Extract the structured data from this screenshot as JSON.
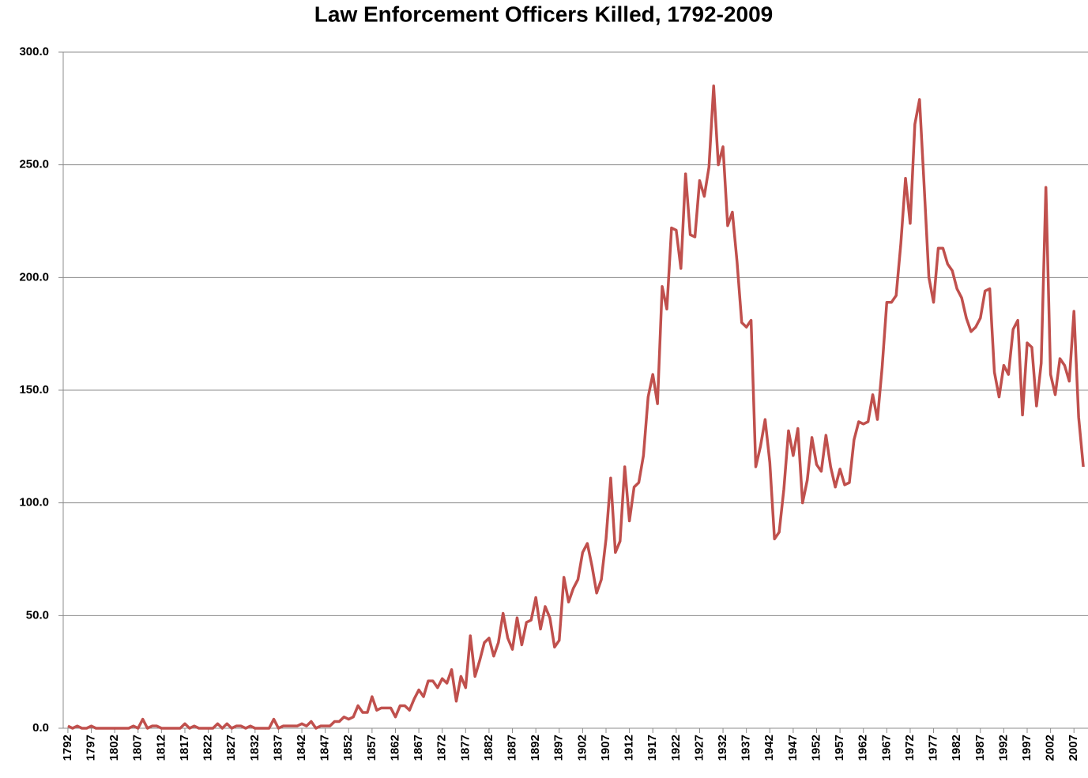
{
  "chart_data": {
    "type": "line",
    "title": "Law Enforcement Officers Killed, 1792-2009",
    "x": [
      1792,
      1793,
      1794,
      1795,
      1796,
      1797,
      1798,
      1799,
      1800,
      1801,
      1802,
      1803,
      1804,
      1805,
      1806,
      1807,
      1808,
      1809,
      1810,
      1811,
      1812,
      1813,
      1814,
      1815,
      1816,
      1817,
      1818,
      1819,
      1820,
      1821,
      1822,
      1823,
      1824,
      1825,
      1826,
      1827,
      1828,
      1829,
      1830,
      1831,
      1832,
      1833,
      1834,
      1835,
      1836,
      1837,
      1838,
      1839,
      1840,
      1841,
      1842,
      1843,
      1844,
      1845,
      1846,
      1847,
      1848,
      1849,
      1850,
      1851,
      1852,
      1853,
      1854,
      1855,
      1856,
      1857,
      1858,
      1859,
      1860,
      1861,
      1862,
      1863,
      1864,
      1865,
      1866,
      1867,
      1868,
      1869,
      1870,
      1871,
      1872,
      1873,
      1874,
      1875,
      1876,
      1877,
      1878,
      1879,
      1880,
      1881,
      1882,
      1883,
      1884,
      1885,
      1886,
      1887,
      1888,
      1889,
      1890,
      1891,
      1892,
      1893,
      1894,
      1895,
      1896,
      1897,
      1898,
      1899,
      1900,
      1901,
      1902,
      1903,
      1904,
      1905,
      1906,
      1907,
      1908,
      1909,
      1910,
      1911,
      1912,
      1913,
      1914,
      1915,
      1916,
      1917,
      1918,
      1919,
      1920,
      1921,
      1922,
      1923,
      1924,
      1925,
      1926,
      1927,
      1928,
      1929,
      1930,
      1931,
      1932,
      1933,
      1934,
      1935,
      1936,
      1937,
      1938,
      1939,
      1940,
      1941,
      1942,
      1943,
      1944,
      1945,
      1946,
      1947,
      1948,
      1949,
      1950,
      1951,
      1952,
      1953,
      1954,
      1955,
      1956,
      1957,
      1958,
      1959,
      1960,
      1961,
      1962,
      1963,
      1964,
      1965,
      1966,
      1967,
      1968,
      1969,
      1970,
      1971,
      1972,
      1973,
      1974,
      1975,
      1976,
      1977,
      1978,
      1979,
      1980,
      1981,
      1982,
      1983,
      1984,
      1985,
      1986,
      1987,
      1988,
      1989,
      1990,
      1991,
      1992,
      1993,
      1994,
      1995,
      1996,
      1997,
      1998,
      1999,
      2000,
      2001,
      2002,
      2003,
      2004,
      2005,
      2006,
      2007,
      2008,
      2009
    ],
    "series": [
      {
        "color": "#c0504d",
        "values": [
          1,
          0,
          1,
          0,
          0,
          1,
          0,
          0,
          0,
          0,
          0,
          0,
          0,
          0,
          1,
          0,
          4,
          0,
          1,
          1,
          0,
          0,
          0,
          0,
          0,
          2,
          0,
          1,
          0,
          0,
          0,
          0,
          2,
          0,
          2,
          0,
          1,
          1,
          0,
          1,
          0,
          0,
          0,
          0,
          4,
          0,
          1,
          1,
          1,
          1,
          2,
          1,
          3,
          0,
          1,
          1,
          1,
          3,
          3,
          5,
          4,
          5,
          10,
          7,
          7,
          14,
          8,
          9,
          9,
          9,
          5,
          10,
          10,
          8,
          13,
          17,
          14,
          21,
          21,
          18,
          22,
          20,
          26,
          12,
          23,
          18,
          41,
          23,
          30,
          38,
          40,
          32,
          38,
          51,
          40,
          35,
          49,
          37,
          47,
          48,
          58,
          44,
          54,
          49,
          36,
          39,
          67,
          56,
          62,
          66,
          78,
          82,
          72,
          60,
          66,
          84,
          111,
          78,
          83,
          116,
          92,
          107,
          109,
          121,
          147,
          157,
          144,
          196,
          186,
          222,
          221,
          204,
          246,
          219,
          218,
          243,
          236,
          249,
          285,
          250,
          258,
          223,
          229,
          207,
          180,
          178,
          181,
          116,
          125,
          137,
          118,
          84,
          87,
          106,
          132,
          121,
          133,
          100,
          110,
          129,
          117,
          114,
          130,
          116,
          107,
          115,
          108,
          109,
          128,
          136,
          135,
          136,
          148,
          137,
          160,
          189,
          189,
          192,
          215,
          244,
          224,
          268,
          279,
          240,
          200,
          189,
          213,
          213,
          206,
          203,
          195,
          191,
          182,
          176,
          178,
          182,
          194,
          195,
          158,
          147,
          161,
          157,
          177,
          181,
          139,
          171,
          169,
          143,
          162,
          240,
          157,
          148,
          164,
          161,
          154,
          185,
          138,
          116
        ]
      }
    ],
    "xlim": [
      1791,
      2010
    ],
    "xticks": [
      1792,
      1797,
      1802,
      1807,
      1812,
      1817,
      1822,
      1827,
      1832,
      1837,
      1842,
      1847,
      1852,
      1857,
      1862,
      1867,
      1872,
      1877,
      1882,
      1887,
      1892,
      1897,
      1902,
      1907,
      1912,
      1917,
      1922,
      1927,
      1932,
      1937,
      1942,
      1947,
      1952,
      1957,
      1962,
      1967,
      1972,
      1977,
      1982,
      1987,
      1992,
      1997,
      2002,
      2007
    ],
    "ylim": [
      0,
      300
    ],
    "yticks": [
      {
        "value": 0,
        "label": "0.0"
      },
      {
        "value": 50,
        "label": "50.0"
      },
      {
        "value": 100,
        "label": "100.0"
      },
      {
        "value": 150,
        "label": "150.0"
      },
      {
        "value": 200,
        "label": "200.0"
      },
      {
        "value": 250,
        "label": "250.0"
      },
      {
        "value": 300,
        "label": "300.0"
      }
    ],
    "grid": true
  }
}
